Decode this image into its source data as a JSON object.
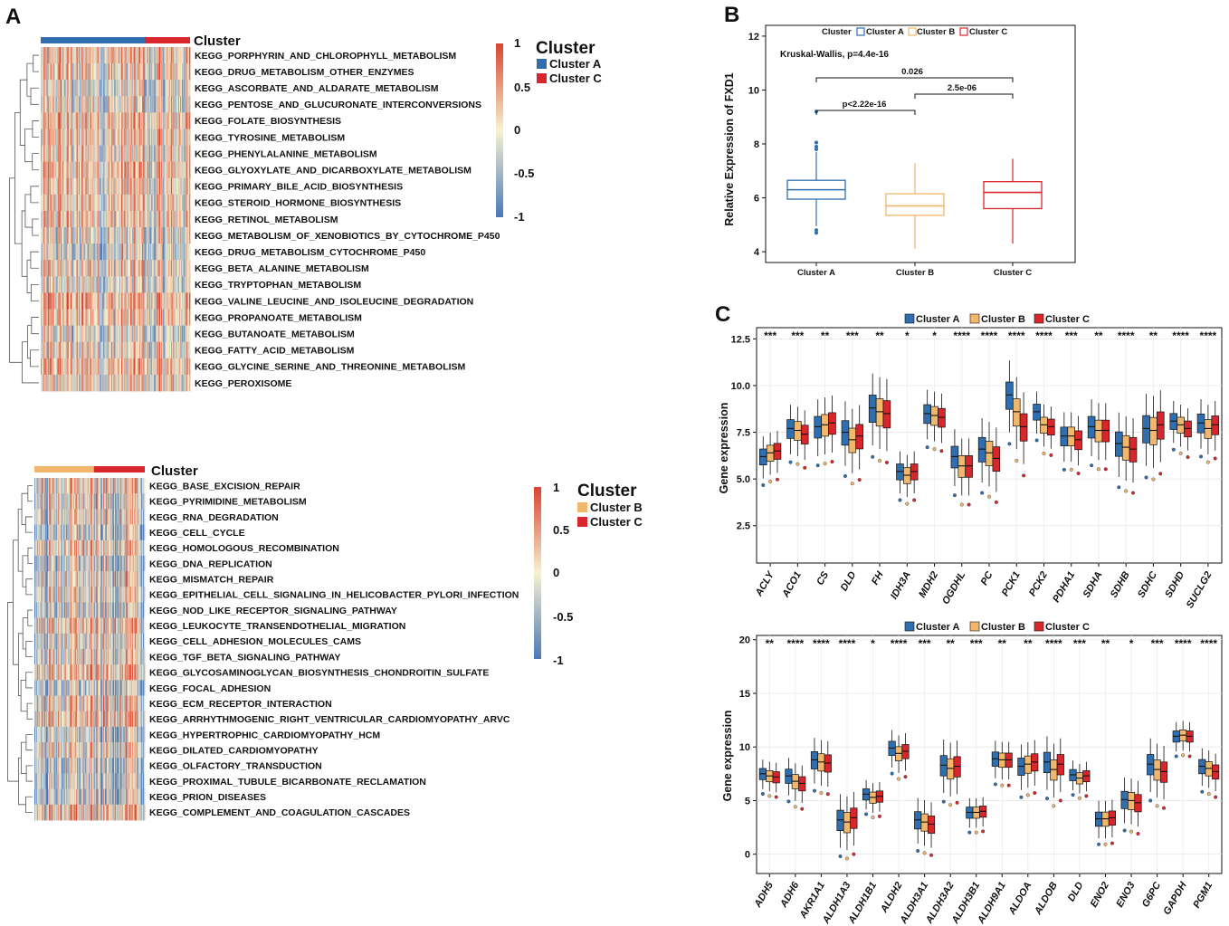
{
  "figure": {
    "labels": {
      "a": "A",
      "b": "B",
      "c": "C"
    },
    "colors": {
      "cluster_a": "#2f6fb0",
      "cluster_b": "#f3b76b",
      "cluster_c": "#d9262c",
      "hm_low": "#4a78b8",
      "hm_mid": "#f7f2d0",
      "hm_high": "#d9442e"
    }
  },
  "heatmap_top": {
    "annotation_title": "Cluster",
    "legend_title": "Cluster",
    "legend_items": [
      "Cluster A",
      "Cluster C"
    ],
    "legend_colors": [
      "#2f6fb0",
      "#d9262c"
    ],
    "colorbar_ticks": [
      "1",
      "0.5",
      "0",
      "-0.5",
      "-1"
    ],
    "rows": [
      "KEGG_PORPHYRIN_AND_CHLOROPHYLL_METABOLISM",
      "KEGG_DRUG_METABOLISM_OTHER_ENZYMES",
      "KEGG_ASCORBATE_AND_ALDARATE_METABOLISM",
      "KEGG_PENTOSE_AND_GLUCURONATE_INTERCONVERSIONS",
      "KEGG_FOLATE_BIOSYNTHESIS",
      "KEGG_TYROSINE_METABOLISM",
      "KEGG_PHENYLALANINE_METABOLISM",
      "KEGG_GLYOXYLATE_AND_DICARBOXYLATE_METABOLISM",
      "KEGG_PRIMARY_BILE_ACID_BIOSYNTHESIS",
      "KEGG_STEROID_HORMONE_BIOSYNTHESIS",
      "KEGG_RETINOL_METABOLISM",
      "KEGG_METABOLISM_OF_XENOBIOTICS_BY_CYTOCHROME_P450",
      "KEGG_DRUG_METABOLISM_CYTOCHROME_P450",
      "KEGG_BETA_ALANINE_METABOLISM",
      "KEGG_TRYPTOPHAN_METABOLISM",
      "KEGG_VALINE_LEUCINE_AND_ISOLEUCINE_DEGRADATION",
      "KEGG_PROPANOATE_METABOLISM",
      "KEGG_BUTANOATE_METABOLISM",
      "KEGG_FATTY_ACID_METABOLISM",
      "KEGG_GLYCINE_SERINE_AND_THREONINE_METABOLISM",
      "KEGG_PEROXISOME"
    ]
  },
  "heatmap_bottom": {
    "annotation_title": "Cluster",
    "legend_title": "Cluster",
    "legend_items": [
      "Cluster B",
      "Cluster C"
    ],
    "legend_colors": [
      "#f3b76b",
      "#d9262c"
    ],
    "colorbar_ticks": [
      "1",
      "0.5",
      "0",
      "-0.5",
      "-1"
    ],
    "rows": [
      "KEGG_BASE_EXCISION_REPAIR",
      "KEGG_PYRIMIDINE_METABOLISM",
      "KEGG_RNA_DEGRADATION",
      "KEGG_CELL_CYCLE",
      "KEGG_HOMOLOGOUS_RECOMBINATION",
      "KEGG_DNA_REPLICATION",
      "KEGG_MISMATCH_REPAIR",
      "KEGG_EPITHELIAL_CELL_SIGNALING_IN_HELICOBACTER_PYLORI_INFECTION",
      "KEGG_NOD_LIKE_RECEPTOR_SIGNALING_PATHWAY",
      "KEGG_LEUKOCYTE_TRANSENDOTHELIAL_MIGRATION",
      "KEGG_CELL_ADHESION_MOLECULES_CAMS",
      "KEGG_TGF_BETA_SIGNALING_PATHWAY",
      "KEGG_GLYCOSAMINOGLYCAN_BIOSYNTHESIS_CHONDROITIN_SULFATE",
      "KEGG_FOCAL_ADHESION",
      "KEGG_ECM_RECEPTOR_INTERACTION",
      "KEGG_ARRHYTHMOGENIC_RIGHT_VENTRICULAR_CARDIOMYOPATHY_ARVC",
      "KEGG_HYPERTROPHIC_CARDIOMYOPATHY_HCM",
      "KEGG_DILATED_CARDIOMYOPATHY",
      "KEGG_OLFACTORY_TRANSDUCTION",
      "KEGG_PROXIMAL_TUBULE_BICARBONATE_RECLAMATION",
      "KEGG_PRION_DISEASES",
      "KEGG_COMPLEMENT_AND_COAGULATION_CASCADES"
    ]
  },
  "panel_b": {
    "legend_title": "Cluster",
    "legend_items": [
      "Cluster A",
      "Cluster B",
      "Cluster C"
    ],
    "test_label": "Kruskal-Wallis, p=4.4e-16",
    "comparisons": [
      "0.026",
      "2.5e-06",
      "p<2.22e-16"
    ]
  },
  "panel_c": {
    "legend_items": [
      "Cluster A",
      "Cluster B",
      "Cluster C"
    ],
    "legend_items_bottom": [
      "Cluster A",
      "Cluster B",
      "Cluster C"
    ]
  },
  "chart_data": [
    {
      "type": "box",
      "id": "panel-b",
      "title": "",
      "xlabel": "",
      "ylabel": "Relative Expression of FXD1",
      "ylim": [
        3.6,
        12.4
      ],
      "yticks": [
        4,
        6,
        8,
        10,
        12
      ],
      "categories": [
        "Cluster A",
        "Cluster B",
        "Cluster C"
      ],
      "boxes": [
        {
          "name": "Cluster A",
          "q1": 5.95,
          "median": 6.3,
          "q3": 6.65,
          "low": 4.95,
          "high": 7.7,
          "outliers": [
            4.7,
            4.8,
            7.8,
            7.9,
            8.05,
            9.2
          ]
        },
        {
          "name": "Cluster B",
          "q1": 5.35,
          "median": 5.7,
          "q3": 6.15,
          "low": 4.1,
          "high": 7.3,
          "outliers": []
        },
        {
          "name": "Cluster C",
          "q1": 5.6,
          "median": 6.2,
          "q3": 6.6,
          "low": 4.3,
          "high": 7.45,
          "outliers": []
        }
      ]
    },
    {
      "type": "box",
      "id": "panel-c-top",
      "xlabel": "",
      "ylabel": "Gene expression",
      "ylim": [
        0.5,
        13.1
      ],
      "yticks": [
        2.5,
        5.0,
        7.5,
        10.0,
        12.5
      ],
      "ytick_labels": [
        "2.5",
        "5.0",
        "7.5",
        "10.0",
        "12.5"
      ],
      "series": [
        "Cluster A",
        "Cluster B",
        "Cluster C"
      ],
      "categories": [
        "ACLY",
        "ACO1",
        "CS",
        "DLD",
        "FH",
        "IDH3A",
        "MDH2",
        "OGDHL",
        "PC",
        "PCK1",
        "PCK2",
        "PDHA1",
        "SDHA",
        "SDHB",
        "SDHC",
        "SDHD",
        "SUCLG2"
      ],
      "significance": [
        "***",
        "***",
        "**",
        "***",
        "**",
        "*",
        "*",
        "****",
        "****",
        "****",
        "****",
        "***",
        "**",
        "****",
        "**",
        "****",
        "****"
      ],
      "medians": [
        [
          6.2,
          6.4,
          6.5
        ],
        [
          7.7,
          7.6,
          7.4
        ],
        [
          7.8,
          7.9,
          8.0
        ],
        [
          7.5,
          7.1,
          7.3
        ],
        [
          8.8,
          8.6,
          8.5
        ],
        [
          5.4,
          5.2,
          5.4
        ],
        [
          8.5,
          8.4,
          8.3
        ],
        [
          6.2,
          5.7,
          5.7
        ],
        [
          6.6,
          6.4,
          6.1
        ],
        [
          9.5,
          8.6,
          7.8
        ],
        [
          8.6,
          7.9,
          7.8
        ],
        [
          7.3,
          7.3,
          7.1
        ],
        [
          7.8,
          7.6,
          7.6
        ],
        [
          6.9,
          6.7,
          6.6
        ],
        [
          7.7,
          7.6,
          7.9
        ],
        [
          8.1,
          7.9,
          7.7
        ],
        [
          8.0,
          7.7,
          7.9
        ]
      ]
    },
    {
      "type": "box",
      "id": "panel-c-bottom",
      "xlabel": "",
      "ylabel": "Gene expression",
      "ylim": [
        -1.8,
        20.4
      ],
      "yticks": [
        0,
        5,
        10,
        15,
        20
      ],
      "ytick_labels": [
        "0",
        "5",
        "10",
        "15",
        "20"
      ],
      "series": [
        "Cluster A",
        "Cluster B",
        "Cluster C"
      ],
      "categories": [
        "ADH5",
        "ADH6",
        "AKR1A1",
        "ALDH1A3",
        "ALDH1B1",
        "ALDH2",
        "ALDH3A1",
        "ALDH3A2",
        "ALDH3B1",
        "ALDH9A1",
        "ALDOA",
        "ALDOB",
        "DLD",
        "ENO2",
        "ENO3",
        "G6PC",
        "GAPDH",
        "PGM1"
      ],
      "significance": [
        "**",
        "****",
        "****",
        "****",
        "*",
        "****",
        "***",
        "**",
        "***",
        "**",
        "**",
        "****",
        "***",
        "**",
        "*",
        "***",
        "****",
        "****"
      ],
      "medians": [
        [
          7.5,
          7.3,
          7.2
        ],
        [
          7.3,
          6.8,
          6.6
        ],
        [
          8.8,
          8.6,
          8.5
        ],
        [
          3.2,
          3.0,
          3.4
        ],
        [
          5.6,
          5.3,
          5.4
        ],
        [
          9.9,
          9.4,
          9.6
        ],
        [
          3.2,
          3.0,
          2.8
        ],
        [
          8.3,
          8.0,
          8.2
        ],
        [
          3.9,
          3.9,
          4.0
        ],
        [
          8.9,
          8.8,
          8.8
        ],
        [
          8.2,
          8.4,
          8.6
        ],
        [
          8.6,
          7.9,
          8.4
        ],
        [
          7.4,
          7.1,
          7.3
        ],
        [
          3.3,
          3.3,
          3.4
        ],
        [
          5.1,
          5.0,
          4.8
        ],
        [
          8.4,
          7.9,
          7.7
        ],
        [
          11.0,
          11.1,
          11.0
        ],
        [
          8.2,
          8.0,
          7.7
        ]
      ]
    }
  ]
}
